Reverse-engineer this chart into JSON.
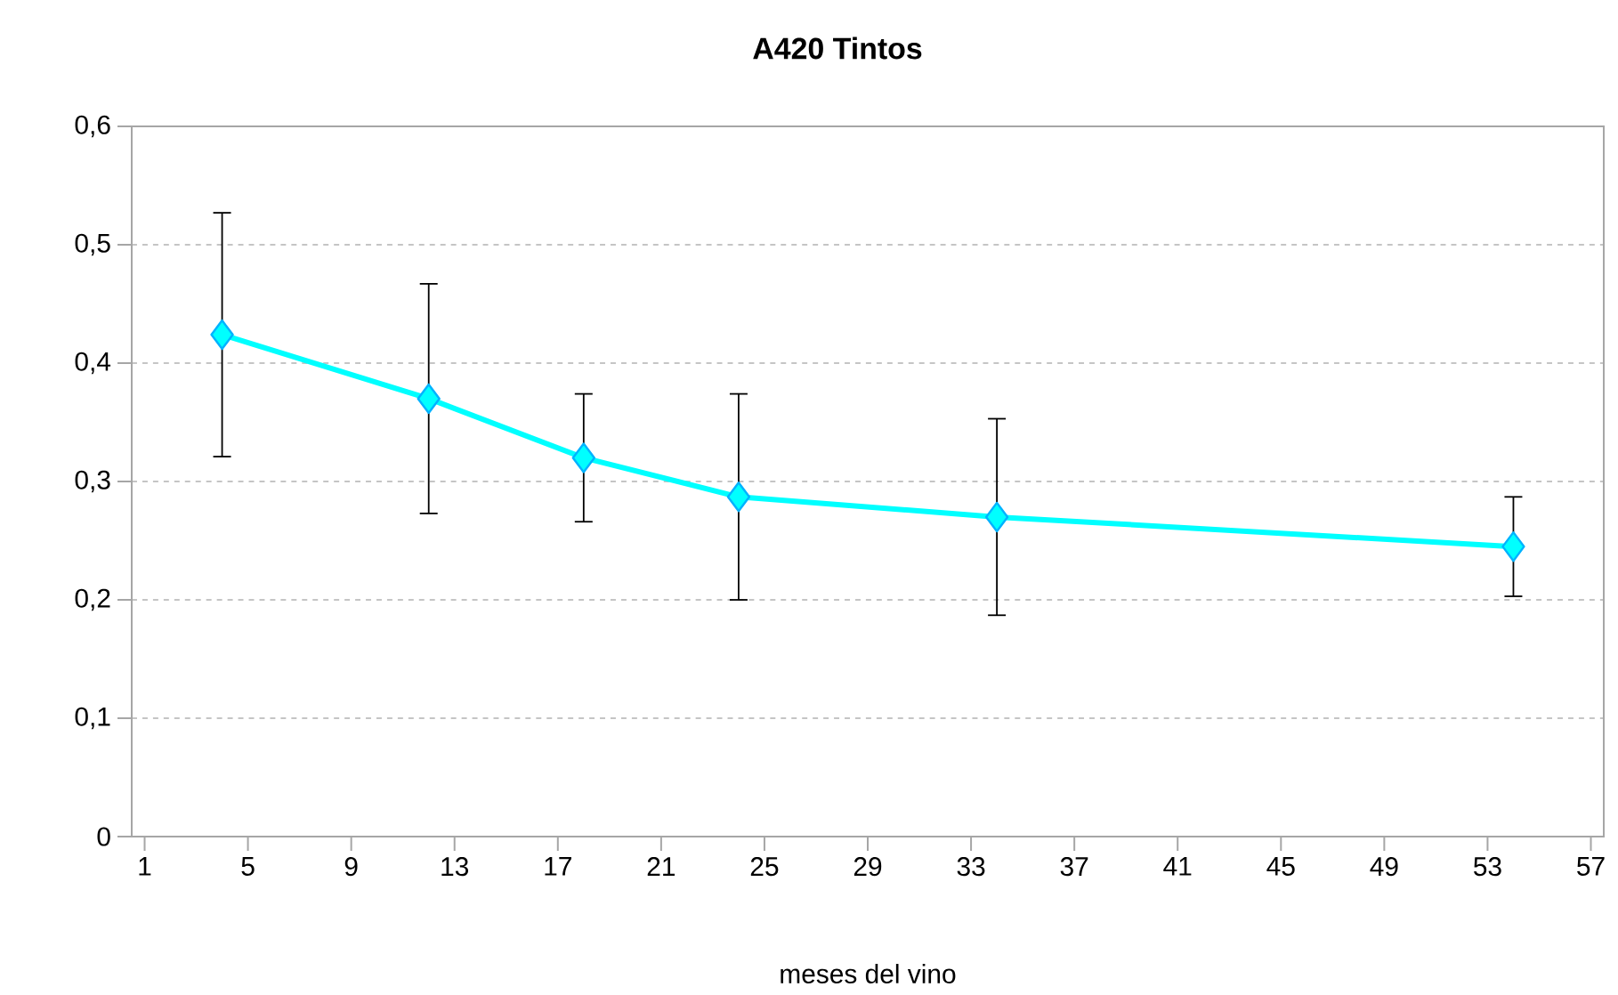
{
  "chart_data": {
    "type": "line",
    "title": "A420 Tintos",
    "xlabel": "meses del vino",
    "x": [
      4,
      12,
      18,
      24,
      34,
      54
    ],
    "series": [
      {
        "color": "#00ffff",
        "values": [
          0.424,
          0.37,
          0.32,
          0.287,
          0.27,
          0.245
        ],
        "errors": [
          0.103,
          0.097,
          0.054,
          0.087,
          0.083,
          0.042
        ]
      }
    ],
    "xlim": [
      0.5,
      57.5
    ],
    "xticks": [
      1,
      5,
      9,
      13,
      17,
      21,
      25,
      29,
      33,
      37,
      41,
      45,
      49,
      53,
      57
    ],
    "ylim": [
      0,
      0.6
    ],
    "yticks": [
      0,
      {
        "value": 0.1,
        "label": "0,1"
      },
      {
        "value": 0.2,
        "label": "0,2"
      },
      {
        "value": 0.3,
        "label": "0,3"
      },
      {
        "value": 0.4,
        "label": "0,4"
      },
      {
        "value": 0.5,
        "label": "0,5"
      },
      {
        "value": 0.6,
        "label": "0,6"
      }
    ],
    "grid": "y",
    "legend": false,
    "marker": "diamond",
    "line_style": "solid"
  }
}
